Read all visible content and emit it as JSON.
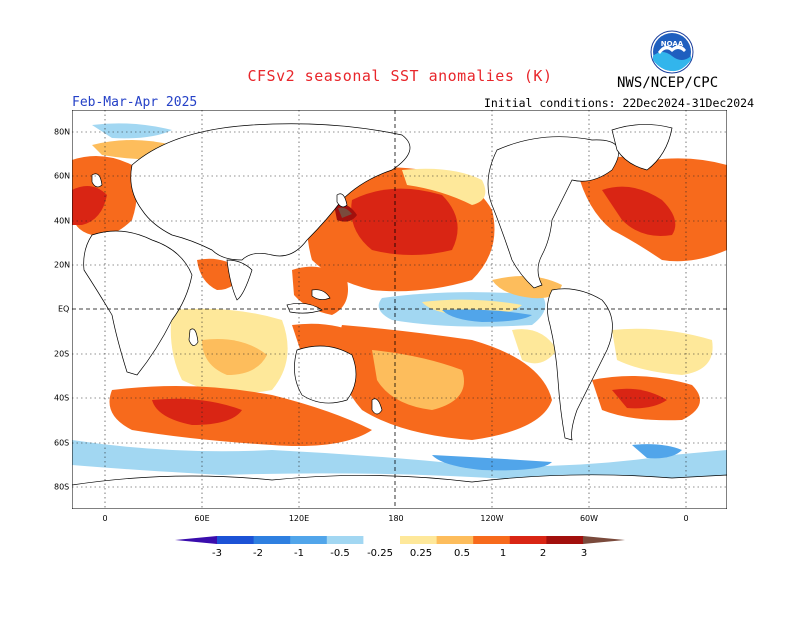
{
  "header": {
    "title": "CFSv2 seasonal SST anomalies (K)",
    "org": "NWS/NCEP/CPC",
    "season": "Feb-Mar-Apr 2025",
    "initial": "Initial conditions: 22Dec2024-31Dec2024",
    "logo_text": "NOAA"
  },
  "map": {
    "lat_labels": [
      "80N",
      "60N",
      "40N",
      "20N",
      "EQ",
      "20S",
      "40S",
      "60S",
      "80S"
    ],
    "lon_labels": [
      "0",
      "60E",
      "120E",
      "180",
      "120W",
      "60W",
      "0"
    ]
  },
  "colorbar": {
    "labels": [
      "-3",
      "-2",
      "-1",
      "-0.5",
      "-0.25",
      "0.25",
      "0.5",
      "1",
      "2",
      "3"
    ],
    "colors": [
      "#3a0dad",
      "#1c52d6",
      "#2e7fe0",
      "#51a5ea",
      "#a2d7f2",
      "#ffffff",
      "#fee89a",
      "#fdbd5c",
      "#f76a1c",
      "#d92514",
      "#a2100d",
      "#7a4a3c"
    ],
    "coast_color": "#000000",
    "grid_color": "#222222"
  }
}
